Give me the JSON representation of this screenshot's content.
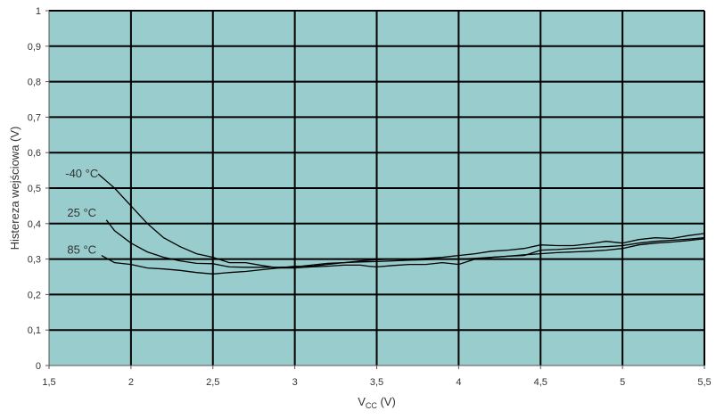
{
  "colors": {
    "plot_background": "#99cccc",
    "grid_line": "#000000",
    "curve": "#000000",
    "text": "#333333"
  },
  "chart_data": {
    "type": "line",
    "title": "",
    "xlabel": {
      "main": "V",
      "sub": "CC",
      "unit": " (V)"
    },
    "ylabel": "Histereza wejściowa (V)",
    "xlim": [
      1.5,
      5.5
    ],
    "ylim": [
      0,
      1
    ],
    "x_ticks": [
      {
        "value": 1.5,
        "label": "1,5"
      },
      {
        "value": 2,
        "label": "2"
      },
      {
        "value": 2.5,
        "label": "2,5"
      },
      {
        "value": 3,
        "label": "3"
      },
      {
        "value": 3.5,
        "label": "3,5"
      },
      {
        "value": 4,
        "label": "4"
      },
      {
        "value": 4.5,
        "label": "4,5"
      },
      {
        "value": 5,
        "label": "5"
      },
      {
        "value": 5.5,
        "label": "5,5"
      }
    ],
    "y_ticks": [
      {
        "value": 0,
        "label": "0"
      },
      {
        "value": 0.1,
        "label": "0,1"
      },
      {
        "value": 0.2,
        "label": "0,2"
      },
      {
        "value": 0.3,
        "label": "0,3"
      },
      {
        "value": 0.4,
        "label": "0,4"
      },
      {
        "value": 0.5,
        "label": "0,5"
      },
      {
        "value": 0.6,
        "label": "0,6"
      },
      {
        "value": 0.7,
        "label": "0,7"
      },
      {
        "value": 0.8,
        "label": "0,8"
      },
      {
        "value": 0.9,
        "label": "0,9"
      },
      {
        "value": 1,
        "label": "1"
      }
    ],
    "grid": true,
    "legend": "none",
    "series": [
      {
        "name": "-40 °C",
        "label_at": [
          1.7,
          0.54
        ],
        "points": [
          [
            1.8,
            0.54
          ],
          [
            1.9,
            0.5
          ],
          [
            2.0,
            0.45
          ],
          [
            2.1,
            0.4
          ],
          [
            2.2,
            0.36
          ],
          [
            2.3,
            0.335
          ],
          [
            2.4,
            0.315
          ],
          [
            2.5,
            0.305
          ],
          [
            2.6,
            0.29
          ],
          [
            2.7,
            0.29
          ],
          [
            2.8,
            0.282
          ],
          [
            2.9,
            0.275
          ],
          [
            3.0,
            0.275
          ],
          [
            3.1,
            0.278
          ],
          [
            3.2,
            0.28
          ],
          [
            3.3,
            0.283
          ],
          [
            3.4,
            0.283
          ],
          [
            3.45,
            0.28
          ],
          [
            3.5,
            0.278
          ],
          [
            3.6,
            0.282
          ],
          [
            3.7,
            0.285
          ],
          [
            3.8,
            0.285
          ],
          [
            3.9,
            0.29
          ],
          [
            4.0,
            0.285
          ],
          [
            4.1,
            0.3
          ],
          [
            4.2,
            0.305
          ],
          [
            4.3,
            0.308
          ],
          [
            4.4,
            0.312
          ],
          [
            4.5,
            0.315
          ],
          [
            4.6,
            0.318
          ],
          [
            4.7,
            0.32
          ],
          [
            4.8,
            0.322
          ],
          [
            4.9,
            0.325
          ],
          [
            5.0,
            0.33
          ],
          [
            5.1,
            0.34
          ],
          [
            5.2,
            0.345
          ],
          [
            5.3,
            0.348
          ],
          [
            5.4,
            0.352
          ],
          [
            5.5,
            0.357
          ]
        ]
      },
      {
        "name": "25 °C",
        "label_at": [
          1.7,
          0.43
        ],
        "points": [
          [
            1.85,
            0.41
          ],
          [
            1.9,
            0.38
          ],
          [
            2.0,
            0.345
          ],
          [
            2.1,
            0.32
          ],
          [
            2.2,
            0.305
          ],
          [
            2.3,
            0.295
          ],
          [
            2.4,
            0.288
          ],
          [
            2.5,
            0.287
          ],
          [
            2.6,
            0.278
          ],
          [
            2.7,
            0.277
          ],
          [
            2.8,
            0.277
          ],
          [
            2.9,
            0.277
          ],
          [
            3.0,
            0.278
          ],
          [
            3.1,
            0.283
          ],
          [
            3.2,
            0.288
          ],
          [
            3.3,
            0.29
          ],
          [
            3.4,
            0.292
          ],
          [
            3.5,
            0.293
          ],
          [
            3.6,
            0.295
          ],
          [
            3.7,
            0.297
          ],
          [
            3.8,
            0.298
          ],
          [
            3.9,
            0.3
          ],
          [
            4.0,
            0.3
          ],
          [
            4.1,
            0.302
          ],
          [
            4.2,
            0.305
          ],
          [
            4.3,
            0.308
          ],
          [
            4.4,
            0.31
          ],
          [
            4.5,
            0.325
          ],
          [
            4.6,
            0.327
          ],
          [
            4.7,
            0.33
          ],
          [
            4.8,
            0.333
          ],
          [
            4.9,
            0.335
          ],
          [
            5.0,
            0.338
          ],
          [
            5.1,
            0.345
          ],
          [
            5.2,
            0.35
          ],
          [
            5.3,
            0.353
          ],
          [
            5.4,
            0.356
          ],
          [
            5.5,
            0.36
          ]
        ]
      },
      {
        "name": "85 °C",
        "label_at": [
          1.7,
          0.325
        ],
        "points": [
          [
            1.82,
            0.31
          ],
          [
            1.9,
            0.29
          ],
          [
            2.0,
            0.285
          ],
          [
            2.1,
            0.275
          ],
          [
            2.2,
            0.272
          ],
          [
            2.3,
            0.268
          ],
          [
            2.4,
            0.262
          ],
          [
            2.5,
            0.258
          ],
          [
            2.6,
            0.262
          ],
          [
            2.7,
            0.265
          ],
          [
            2.8,
            0.27
          ],
          [
            2.9,
            0.275
          ],
          [
            3.0,
            0.28
          ],
          [
            3.1,
            0.28
          ],
          [
            3.2,
            0.285
          ],
          [
            3.3,
            0.29
          ],
          [
            3.4,
            0.295
          ],
          [
            3.5,
            0.298
          ],
          [
            3.6,
            0.3
          ],
          [
            3.7,
            0.3
          ],
          [
            3.8,
            0.302
          ],
          [
            3.9,
            0.305
          ],
          [
            4.0,
            0.31
          ],
          [
            4.1,
            0.315
          ],
          [
            4.2,
            0.322
          ],
          [
            4.3,
            0.325
          ],
          [
            4.4,
            0.33
          ],
          [
            4.5,
            0.34
          ],
          [
            4.6,
            0.338
          ],
          [
            4.7,
            0.338
          ],
          [
            4.8,
            0.343
          ],
          [
            4.9,
            0.35
          ],
          [
            5.0,
            0.345
          ],
          [
            5.1,
            0.355
          ],
          [
            5.2,
            0.36
          ],
          [
            5.3,
            0.358
          ],
          [
            5.4,
            0.366
          ],
          [
            5.5,
            0.372
          ]
        ]
      }
    ]
  }
}
